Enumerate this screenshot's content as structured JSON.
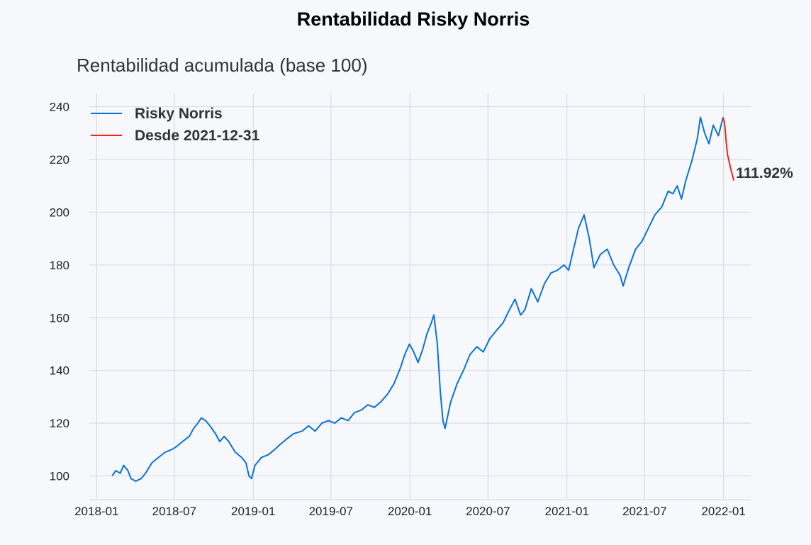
{
  "chart_data": {
    "type": "line",
    "title": "Rentabilidad Risky Norris",
    "subtitle": "Rentabilidad acumulada (base 100)",
    "xlabel": "",
    "ylabel": "",
    "x_ticks": [
      "2018-01",
      "2018-07",
      "2019-01",
      "2019-07",
      "2020-01",
      "2020-07",
      "2021-01",
      "2021-07",
      "2022-01"
    ],
    "y_ticks": [
      100,
      120,
      140,
      160,
      180,
      200,
      220,
      240
    ],
    "ylim": [
      91,
      245
    ],
    "xlim": [
      "2017-12-15",
      "2022-03-07"
    ],
    "grid": true,
    "legend_position": "top-left",
    "series": [
      {
        "name": "Risky Norris",
        "color": "#0a72d6",
        "points": [
          [
            "2018-02-06",
            100
          ],
          [
            "2018-02-15",
            102
          ],
          [
            "2018-02-25",
            101
          ],
          [
            "2018-03-05",
            104
          ],
          [
            "2018-03-15",
            102
          ],
          [
            "2018-03-22",
            99
          ],
          [
            "2018-04-02",
            98
          ],
          [
            "2018-04-15",
            99
          ],
          [
            "2018-04-25",
            101
          ],
          [
            "2018-05-10",
            105
          ],
          [
            "2018-05-25",
            107
          ],
          [
            "2018-06-10",
            109
          ],
          [
            "2018-06-25",
            110
          ],
          [
            "2018-07-05",
            111
          ],
          [
            "2018-07-20",
            113
          ],
          [
            "2018-08-05",
            115
          ],
          [
            "2018-08-15",
            118
          ],
          [
            "2018-08-25",
            120
          ],
          [
            "2018-09-02",
            122
          ],
          [
            "2018-09-12",
            121
          ],
          [
            "2018-09-22",
            119
          ],
          [
            "2018-10-05",
            116
          ],
          [
            "2018-10-15",
            113
          ],
          [
            "2018-10-25",
            115
          ],
          [
            "2018-11-05",
            113
          ],
          [
            "2018-11-20",
            109
          ],
          [
            "2018-12-05",
            107
          ],
          [
            "2018-12-15",
            105
          ],
          [
            "2018-12-22",
            100
          ],
          [
            "2018-12-28",
            99
          ],
          [
            "2019-01-05",
            104
          ],
          [
            "2019-01-20",
            107
          ],
          [
            "2019-02-05",
            108
          ],
          [
            "2019-02-20",
            110
          ],
          [
            "2019-03-05",
            112
          ],
          [
            "2019-03-20",
            114
          ],
          [
            "2019-04-05",
            116
          ],
          [
            "2019-04-25",
            117
          ],
          [
            "2019-05-10",
            119
          ],
          [
            "2019-05-25",
            117
          ],
          [
            "2019-06-10",
            120
          ],
          [
            "2019-06-25",
            121
          ],
          [
            "2019-07-10",
            120
          ],
          [
            "2019-07-25",
            122
          ],
          [
            "2019-08-10",
            121
          ],
          [
            "2019-08-25",
            124
          ],
          [
            "2019-09-10",
            125
          ],
          [
            "2019-09-25",
            127
          ],
          [
            "2019-10-10",
            126
          ],
          [
            "2019-10-25",
            128
          ],
          [
            "2019-11-10",
            131
          ],
          [
            "2019-11-25",
            135
          ],
          [
            "2019-12-10",
            141
          ],
          [
            "2019-12-20",
            146
          ],
          [
            "2019-12-31",
            150
          ],
          [
            "2020-01-10",
            147
          ],
          [
            "2020-01-20",
            143
          ],
          [
            "2020-01-31",
            148
          ],
          [
            "2020-02-10",
            154
          ],
          [
            "2020-02-20",
            158
          ],
          [
            "2020-02-26",
            161
          ],
          [
            "2020-03-05",
            150
          ],
          [
            "2020-03-12",
            132
          ],
          [
            "2020-03-18",
            121
          ],
          [
            "2020-03-23",
            118
          ],
          [
            "2020-04-05",
            128
          ],
          [
            "2020-04-20",
            135
          ],
          [
            "2020-05-05",
            140
          ],
          [
            "2020-05-20",
            146
          ],
          [
            "2020-06-05",
            149
          ],
          [
            "2020-06-20",
            147
          ],
          [
            "2020-07-05",
            152
          ],
          [
            "2020-07-20",
            155
          ],
          [
            "2020-08-05",
            158
          ],
          [
            "2020-08-20",
            163
          ],
          [
            "2020-09-02",
            167
          ],
          [
            "2020-09-15",
            161
          ],
          [
            "2020-09-25",
            163
          ],
          [
            "2020-10-10",
            171
          ],
          [
            "2020-10-25",
            166
          ],
          [
            "2020-11-10",
            173
          ],
          [
            "2020-11-25",
            177
          ],
          [
            "2020-12-10",
            178
          ],
          [
            "2020-12-25",
            180
          ],
          [
            "2021-01-05",
            178
          ],
          [
            "2021-01-15",
            185
          ],
          [
            "2021-01-28",
            194
          ],
          [
            "2021-02-10",
            199
          ],
          [
            "2021-02-22",
            190
          ],
          [
            "2021-03-05",
            179
          ],
          [
            "2021-03-20",
            184
          ],
          [
            "2021-04-05",
            186
          ],
          [
            "2021-04-20",
            180
          ],
          [
            "2021-05-05",
            176
          ],
          [
            "2021-05-12",
            172
          ],
          [
            "2021-05-25",
            179
          ],
          [
            "2021-06-10",
            186
          ],
          [
            "2021-06-25",
            189
          ],
          [
            "2021-07-10",
            194
          ],
          [
            "2021-07-25",
            199
          ],
          [
            "2021-08-10",
            202
          ],
          [
            "2021-08-25",
            208
          ],
          [
            "2021-09-05",
            207
          ],
          [
            "2021-09-15",
            210
          ],
          [
            "2021-09-25",
            205
          ],
          [
            "2021-10-05",
            212
          ],
          [
            "2021-10-20",
            220
          ],
          [
            "2021-11-01",
            228
          ],
          [
            "2021-11-08",
            236
          ],
          [
            "2021-11-18",
            230
          ],
          [
            "2021-11-28",
            226
          ],
          [
            "2021-12-08",
            233
          ],
          [
            "2021-12-20",
            229
          ],
          [
            "2021-12-31",
            236
          ]
        ]
      },
      {
        "name": "Desde 2021-12-31",
        "color": "#f0251c",
        "points": [
          [
            "2021-12-31",
            236
          ],
          [
            "2022-01-03",
            234
          ],
          [
            "2022-01-05",
            231
          ],
          [
            "2022-01-07",
            227
          ],
          [
            "2022-01-10",
            222
          ],
          [
            "2022-01-13",
            220
          ],
          [
            "2022-01-17",
            217
          ],
          [
            "2022-01-20",
            215
          ],
          [
            "2022-01-25",
            212
          ]
        ]
      }
    ],
    "annotation": {
      "label": "111.92%",
      "x": "2022-01-25",
      "y": 212
    }
  }
}
